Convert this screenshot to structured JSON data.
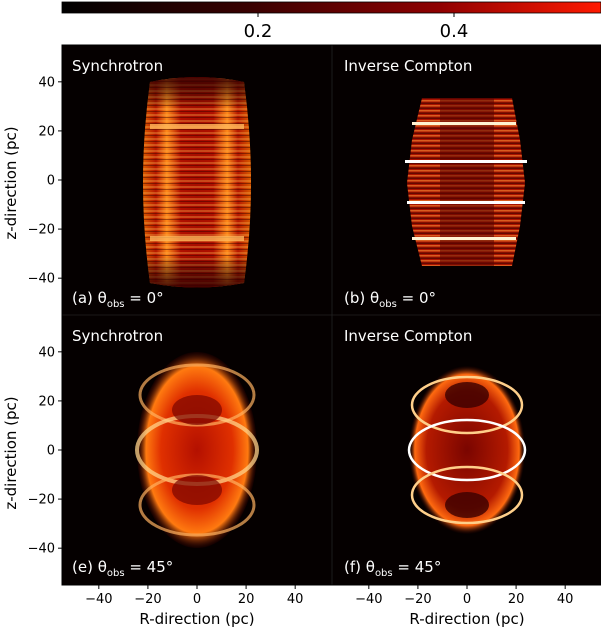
{
  "chart_data": {
    "type": "heatmap",
    "colorbar": {
      "colormap": "black-red-white (gist_heat)",
      "colors": [
        "#000000",
        "#5a0000",
        "#b80000",
        "#ff2a00"
      ],
      "ticks": [
        0.2,
        0.4
      ],
      "range": [
        0,
        0.55
      ]
    },
    "axes": {
      "xlabel": "R-direction (pc)",
      "ylabel": "z-direction (pc)",
      "xlim": [
        -55,
        55
      ],
      "ylim": [
        -55,
        55
      ],
      "xticks": [
        -40,
        -20,
        0,
        20,
        40
      ],
      "yticks": [
        -40,
        -20,
        0,
        20,
        40
      ]
    },
    "panels": [
      {
        "id": "a",
        "title": "Synchrotron",
        "annotation": "(a) θ",
        "annotation_sub": "obs",
        "annotation_tail": " = 0°",
        "emission": "synchrotron",
        "theta_obs_deg": 0,
        "extent": {
          "r": [
            -25,
            25
          ],
          "z": [
            -42,
            42
          ]
        }
      },
      {
        "id": "b",
        "title": "Inverse Compton",
        "annotation": "(b) θ",
        "annotation_sub": "obs",
        "annotation_tail": " = 0°",
        "emission": "inverse-compton",
        "theta_obs_deg": 0,
        "extent": {
          "r": [
            -25,
            25
          ],
          "z": [
            -35,
            35
          ]
        }
      },
      {
        "id": "e",
        "title": "Synchrotron",
        "annotation": "(e) θ",
        "annotation_sub": "obs",
        "annotation_tail": " = 45°",
        "emission": "synchrotron",
        "theta_obs_deg": 45,
        "extent": {
          "r": [
            -25,
            25
          ],
          "z": [
            -42,
            42
          ]
        }
      },
      {
        "id": "f",
        "title": "Inverse Compton",
        "annotation": "(f) θ",
        "annotation_sub": "obs",
        "annotation_tail": " = 45°",
        "emission": "inverse-compton",
        "theta_obs_deg": 45,
        "extent": {
          "r": [
            -24,
            24
          ],
          "z": [
            -37,
            37
          ]
        }
      }
    ]
  }
}
